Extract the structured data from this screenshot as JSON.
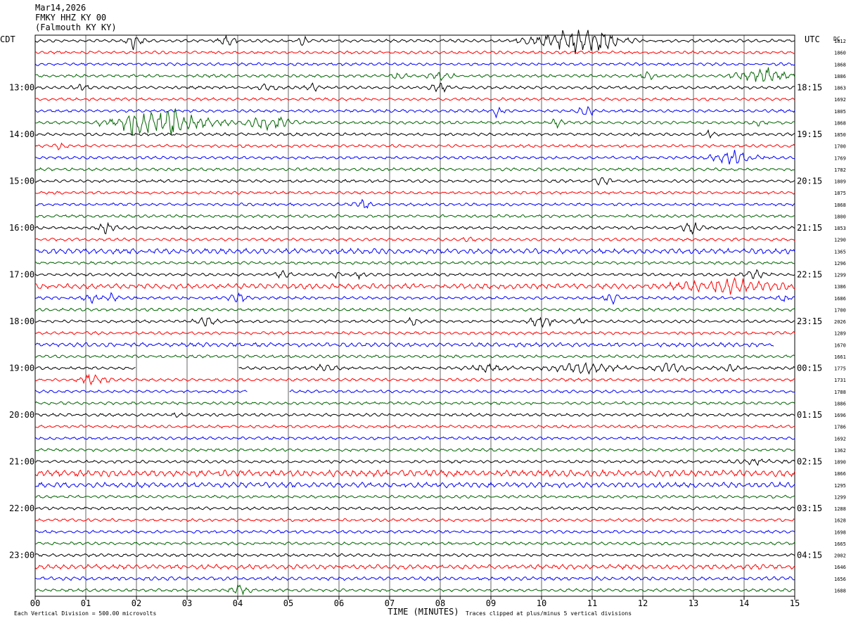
{
  "header": {
    "date": "Mar14,2026",
    "station": "FMKY HHZ KY 00",
    "location": "(Falmouth KY KY)"
  },
  "footer": {
    "scale_note": "Each Vertical Division =  500.00 microvolts",
    "clip_note": "Traces clipped at plus/minus 5 vertical divisions"
  },
  "chart_data": {
    "type": "line",
    "title": "",
    "xlabel": "TIME (MINUTES)",
    "ylabel_left": "CDT",
    "ylabel_right": "UTC",
    "corner_label": "DC",
    "xlim": [
      0,
      15
    ],
    "x_ticks": [
      "00",
      "01",
      "02",
      "03",
      "04",
      "05",
      "06",
      "07",
      "08",
      "09",
      "10",
      "11",
      "12",
      "13",
      "14",
      "15"
    ],
    "grid": true,
    "row_count": 48,
    "rows_per_hour": 4,
    "trace_colors": [
      "#000000",
      "#ff0000",
      "#0000ff",
      "#006400"
    ],
    "left_hour_labels": [
      "13:00",
      "14:00",
      "15:00",
      "16:00",
      "17:00",
      "18:00",
      "19:00",
      "20:00",
      "21:00",
      "22:00",
      "23:00"
    ],
    "left_label_rows": [
      4,
      8,
      12,
      16,
      20,
      24,
      28,
      32,
      36,
      40,
      44
    ],
    "right_hour_labels": [
      "18:15",
      "19:15",
      "20:15",
      "21:15",
      "22:15",
      "23:15",
      "00:15",
      "01:15",
      "02:15",
      "03:15",
      "04:15"
    ],
    "right_label_rows": [
      4,
      8,
      12,
      16,
      20,
      24,
      28,
      32,
      36,
      40,
      44
    ],
    "dc_values": [
      "1812",
      "1860",
      "1868",
      "1886",
      "1863",
      "1692",
      "1805",
      "1868",
      "1850",
      "1700",
      "1769",
      "1782",
      "1809",
      "1875",
      "1868",
      "1800",
      "1853",
      "1290",
      "1365",
      "1296",
      "1299",
      "1386",
      "1686",
      "1700",
      "2026",
      "1289",
      "1670",
      "1661",
      "1775",
      "1731",
      "1788",
      "1886",
      "1696",
      "1786",
      "1692",
      "1362",
      "1890",
      "1866",
      "1295",
      "1299",
      "1288",
      "1628",
      "1698",
      "1665",
      "2002",
      "1646",
      "1656",
      "1688"
    ]
  }
}
